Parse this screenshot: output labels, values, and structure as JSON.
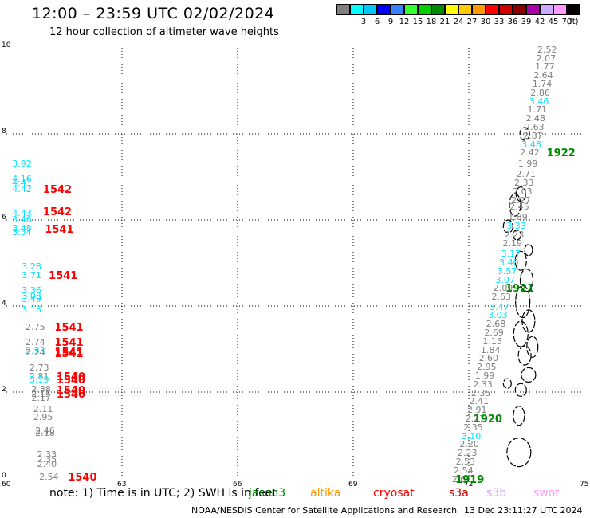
{
  "title": "12:00 – 23:59 UTC 02/02/2024",
  "subtitle": "12 hour collection of altimeter wave heights",
  "legend": {
    "unit": "(ft)",
    "bins": [
      {
        "label": "",
        "color": "#808080"
      },
      {
        "label": "3",
        "color": "#00ffff"
      },
      {
        "label": "6",
        "color": "#00c8ff"
      },
      {
        "label": "9",
        "color": "#0000ff"
      },
      {
        "label": "12",
        "color": "#3a7fff"
      },
      {
        "label": "15",
        "color": "#33ff33"
      },
      {
        "label": "18",
        "color": "#00cc00"
      },
      {
        "label": "21",
        "color": "#008800"
      },
      {
        "label": "24",
        "color": "#ffff00"
      },
      {
        "label": "27",
        "color": "#ffcc00"
      },
      {
        "label": "30",
        "color": "#ff9900"
      },
      {
        "label": "33",
        "color": "#ff0000"
      },
      {
        "label": "36",
        "color": "#cc0000"
      },
      {
        "label": "39",
        "color": "#880000"
      },
      {
        "label": "42",
        "color": "#aa00aa"
      },
      {
        "label": "45",
        "color": "#ccaaff"
      },
      {
        "label": "70",
        "color": "#ff99ff"
      },
      {
        "label": "",
        "color": "#000000"
      }
    ]
  },
  "axes": {
    "x_ticks": [
      "60",
      "63",
      "66",
      "69",
      "72",
      "75"
    ],
    "y_ticks": [
      "0",
      "2",
      "4",
      "6",
      "8",
      "10"
    ],
    "xlim": [
      60,
      75
    ],
    "ylim": [
      0,
      10
    ]
  },
  "colors": {
    "gray": "#808080",
    "cyan": "#00e5ff",
    "red": "#ff0000",
    "green": "#008800"
  },
  "west_track": [
    {
      "v": "3.92",
      "c": "cyan",
      "lon": 60.15,
      "lat": 7.3
    },
    {
      "v": "4.16",
      "c": "cyan",
      "lon": 60.15,
      "lat": 6.95
    },
    {
      "v": "4.41",
      "c": "cyan",
      "lon": 60.15,
      "lat": 6.85
    },
    {
      "v": "4.42",
      "c": "cyan",
      "lon": 60.15,
      "lat": 6.7
    },
    {
      "v": "4.43",
      "c": "cyan",
      "lon": 60.15,
      "lat": 6.15
    },
    {
      "v": "3.46",
      "c": "cyan",
      "lon": 60.15,
      "lat": 6.0
    },
    {
      "v": "3.48",
      "c": "cyan",
      "lon": 60.15,
      "lat": 5.8
    },
    {
      "v": "3.54",
      "c": "cyan",
      "lon": 60.15,
      "lat": 5.7
    },
    {
      "v": "3.28",
      "c": "cyan",
      "lon": 60.4,
      "lat": 4.9
    },
    {
      "v": "3.71",
      "c": "cyan",
      "lon": 60.4,
      "lat": 4.7
    },
    {
      "v": "3.36",
      "c": "cyan",
      "lon": 60.4,
      "lat": 4.35
    },
    {
      "v": "3.03",
      "c": "cyan",
      "lon": 60.4,
      "lat": 4.22
    },
    {
      "v": "3.49",
      "c": "cyan",
      "lon": 60.4,
      "lat": 4.15
    },
    {
      "v": "3.18",
      "c": "cyan",
      "lon": 60.4,
      "lat": 3.9
    },
    {
      "v": "2.75",
      "c": "gray",
      "lon": 60.5,
      "lat": 3.5
    },
    {
      "v": "2.74",
      "c": "gray",
      "lon": 60.5,
      "lat": 3.15
    },
    {
      "v": "2.33",
      "c": "cyan",
      "lon": 60.5,
      "lat": 2.95
    },
    {
      "v": "2.24",
      "c": "gray",
      "lon": 60.5,
      "lat": 2.9
    },
    {
      "v": "2.73",
      "c": "gray",
      "lon": 60.6,
      "lat": 2.55
    },
    {
      "v": "2.81",
      "c": "gray",
      "lon": 60.6,
      "lat": 2.35
    },
    {
      "v": "3.19",
      "c": "cyan",
      "lon": 60.6,
      "lat": 2.28
    },
    {
      "v": "2.38",
      "c": "gray",
      "lon": 60.65,
      "lat": 2.05
    },
    {
      "v": "2.15",
      "c": "gray",
      "lon": 60.65,
      "lat": 1.95
    },
    {
      "v": "2.17",
      "c": "gray",
      "lon": 60.65,
      "lat": 1.85
    },
    {
      "v": "2.11",
      "c": "gray",
      "lon": 60.7,
      "lat": 1.6
    },
    {
      "v": "2.95",
      "c": "gray",
      "lon": 60.7,
      "lat": 1.4
    },
    {
      "v": "2.46",
      "c": "gray",
      "lon": 60.75,
      "lat": 1.1
    },
    {
      "v": "2.18",
      "c": "gray",
      "lon": 60.75,
      "lat": 1.03
    },
    {
      "v": "2.33",
      "c": "gray",
      "lon": 60.8,
      "lat": 0.53
    },
    {
      "v": "2.35",
      "c": "gray",
      "lon": 60.8,
      "lat": 0.43
    },
    {
      "v": "2.40",
      "c": "gray",
      "lon": 60.8,
      "lat": 0.32
    },
    {
      "v": "2.54",
      "c": "gray",
      "lon": 60.85,
      "lat": 0.02
    }
  ],
  "west_times": [
    {
      "t": "1542",
      "c": "red",
      "lon": 60.95,
      "lat": 6.7
    },
    {
      "t": "1542",
      "c": "red",
      "lon": 60.95,
      "lat": 6.18
    },
    {
      "t": "1541",
      "c": "red",
      "lon": 61.0,
      "lat": 5.78
    },
    {
      "t": "1541",
      "c": "red",
      "lon": 61.1,
      "lat": 4.7
    },
    {
      "t": "1541",
      "c": "red",
      "lon": 61.25,
      "lat": 3.5
    },
    {
      "t": "1541",
      "c": "red",
      "lon": 61.25,
      "lat": 3.15
    },
    {
      "t": "1541",
      "c": "red",
      "lon": 61.25,
      "lat": 2.92
    },
    {
      "t": "1541",
      "c": "red",
      "lon": 61.25,
      "lat": 2.88
    },
    {
      "t": "1540",
      "c": "red",
      "lon": 61.3,
      "lat": 2.35
    },
    {
      "t": "1540",
      "c": "red",
      "lon": 61.3,
      "lat": 2.28
    },
    {
      "t": "1540",
      "c": "red",
      "lon": 61.3,
      "lat": 2.03
    },
    {
      "t": "1540",
      "c": "red",
      "lon": 61.3,
      "lat": 1.95
    },
    {
      "t": "1540",
      "c": "red",
      "lon": 61.6,
      "lat": 0.02
    }
  ],
  "east_track": [
    {
      "v": "2.52",
      "c": "gray",
      "lon": 73.78,
      "lat": 9.95
    },
    {
      "v": "2.07",
      "c": "gray",
      "lon": 73.75,
      "lat": 9.75
    },
    {
      "v": "1.77",
      "c": "gray",
      "lon": 73.72,
      "lat": 9.55
    },
    {
      "v": "2.64",
      "c": "gray",
      "lon": 73.68,
      "lat": 9.35
    },
    {
      "v": "1.74",
      "c": "gray",
      "lon": 73.65,
      "lat": 9.15
    },
    {
      "v": "2.86",
      "c": "gray",
      "lon": 73.6,
      "lat": 8.95
    },
    {
      "v": "3.46",
      "c": "cyan",
      "lon": 73.57,
      "lat": 8.75
    },
    {
      "v": "1.71",
      "c": "gray",
      "lon": 73.52,
      "lat": 8.55
    },
    {
      "v": "2.48",
      "c": "gray",
      "lon": 73.48,
      "lat": 8.35
    },
    {
      "v": "2.63",
      "c": "gray",
      "lon": 73.45,
      "lat": 8.15
    },
    {
      "v": "2.87",
      "c": "gray",
      "lon": 73.41,
      "lat": 7.95
    },
    {
      "v": "3.48",
      "c": "cyan",
      "lon": 73.37,
      "lat": 7.75
    },
    {
      "v": "2.42",
      "c": "gray",
      "lon": 73.33,
      "lat": 7.55
    },
    {
      "v": "1.99",
      "c": "gray",
      "lon": 73.28,
      "lat": 7.3
    },
    {
      "v": "2.71",
      "c": "gray",
      "lon": 73.23,
      "lat": 7.05
    },
    {
      "v": "2.33",
      "c": "gray",
      "lon": 73.18,
      "lat": 6.85
    },
    {
      "v": "2.03",
      "c": "gray",
      "lon": 73.14,
      "lat": 6.65
    },
    {
      "v": "2.27",
      "c": "gray",
      "lon": 73.1,
      "lat": 6.45
    },
    {
      "v": "2.45",
      "c": "gray",
      "lon": 73.06,
      "lat": 6.3
    },
    {
      "v": "1.89",
      "c": "gray",
      "lon": 73.02,
      "lat": 6.05
    },
    {
      "v": "3.33",
      "c": "cyan",
      "lon": 72.98,
      "lat": 5.85
    },
    {
      "v": "2.23",
      "c": "gray",
      "lon": 72.93,
      "lat": 5.65
    },
    {
      "v": "2.19",
      "c": "gray",
      "lon": 72.88,
      "lat": 5.45
    },
    {
      "v": "3.17",
      "c": "cyan",
      "lon": 72.84,
      "lat": 5.2
    },
    {
      "v": "3.40",
      "c": "cyan",
      "lon": 72.79,
      "lat": 5.0
    },
    {
      "v": "3.57",
      "c": "cyan",
      "lon": 72.74,
      "lat": 4.8
    },
    {
      "v": "3.07",
      "c": "cyan",
      "lon": 72.69,
      "lat": 4.6
    },
    {
      "v": "2.09",
      "c": "gray",
      "lon": 72.64,
      "lat": 4.4
    },
    {
      "v": "2.63",
      "c": "gray",
      "lon": 72.59,
      "lat": 4.2
    },
    {
      "v": "3.47",
      "c": "cyan",
      "lon": 72.54,
      "lat": 3.97
    },
    {
      "v": "3.03",
      "c": "cyan",
      "lon": 72.5,
      "lat": 3.77
    },
    {
      "v": "2.68",
      "c": "gray",
      "lon": 72.45,
      "lat": 3.57
    },
    {
      "v": "2.69",
      "c": "gray",
      "lon": 72.4,
      "lat": 3.37
    },
    {
      "v": "1.15",
      "c": "gray",
      "lon": 72.36,
      "lat": 3.17
    },
    {
      "v": "1.84",
      "c": "gray",
      "lon": 72.31,
      "lat": 2.97
    },
    {
      "v": "2.60",
      "c": "gray",
      "lon": 72.26,
      "lat": 2.77
    },
    {
      "v": "2.95",
      "c": "gray",
      "lon": 72.21,
      "lat": 2.57
    },
    {
      "v": "1.99",
      "c": "gray",
      "lon": 72.16,
      "lat": 2.37
    },
    {
      "v": "2.33",
      "c": "gray",
      "lon": 72.11,
      "lat": 2.17
    },
    {
      "v": "2.35",
      "c": "gray",
      "lon": 72.06,
      "lat": 1.97
    },
    {
      "v": "2.41",
      "c": "gray",
      "lon": 72.01,
      "lat": 1.77
    },
    {
      "v": "2.91",
      "c": "gray",
      "lon": 71.96,
      "lat": 1.57
    },
    {
      "v": "2.27",
      "c": "gray",
      "lon": 71.91,
      "lat": 1.37
    },
    {
      "v": "2.35",
      "c": "gray",
      "lon": 71.86,
      "lat": 1.17
    },
    {
      "v": "3.10",
      "c": "cyan",
      "lon": 71.81,
      "lat": 0.97
    },
    {
      "v": "2.20",
      "c": "gray",
      "lon": 71.76,
      "lat": 0.77
    },
    {
      "v": "2.23",
      "c": "gray",
      "lon": 71.71,
      "lat": 0.57
    },
    {
      "v": "2.53",
      "c": "gray",
      "lon": 71.66,
      "lat": 0.37
    },
    {
      "v": "2.54",
      "c": "gray",
      "lon": 71.61,
      "lat": 0.17
    },
    {
      "v": "2.62",
      "c": "gray",
      "lon": 71.56,
      "lat": -0.03
    }
  ],
  "east_times": [
    {
      "t": "1922",
      "c": "green",
      "lon": 74.02,
      "lat": 7.55
    },
    {
      "t": "1921",
      "c": "green",
      "lon": 72.95,
      "lat": 4.4
    },
    {
      "t": "1920",
      "c": "green",
      "lon": 72.12,
      "lat": 1.37
    },
    {
      "t": "1919",
      "c": "green",
      "lon": 71.65,
      "lat": -0.03
    }
  ],
  "note": "note: 1) Time is in UTC; 2) SWH is in feet",
  "satellites": [
    {
      "name": "jason3",
      "color": "#008800"
    },
    {
      "name": "altika",
      "color": "#ff9900"
    },
    {
      "name": "cryosat",
      "color": "#ff0000"
    },
    {
      "name": "s3a",
      "color": "#cc0000"
    },
    {
      "name": "s3b",
      "color": "#ccaaff"
    },
    {
      "name": "swot",
      "color": "#ff99ff"
    }
  ],
  "footer": "NOAA/NESDIS Center for Satellite Applications and Research",
  "generated": "13 Dec 23:11:27 UTC 2024"
}
